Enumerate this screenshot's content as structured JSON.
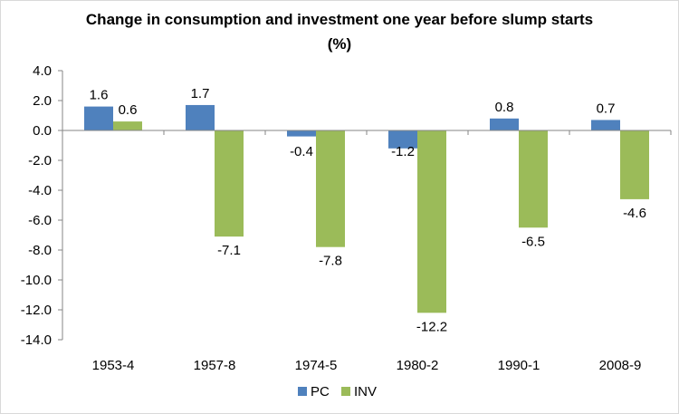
{
  "chart_data": {
    "type": "bar",
    "title": "Change in consumption and investment one year before slump starts",
    "subtitle": "(%)",
    "categories": [
      "1953-4",
      "1957-8",
      "1974-5",
      "1980-2",
      "1990-1",
      "2008-9"
    ],
    "series": [
      {
        "name": "PC",
        "color": "#4f81bd",
        "values": [
          1.6,
          1.7,
          -0.4,
          -1.2,
          0.8,
          0.7
        ],
        "labels": [
          "1.6",
          "1.7",
          "-0.4",
          "-1.2",
          "0.8",
          "0.7"
        ]
      },
      {
        "name": "INV",
        "color": "#9bbb59",
        "values": [
          0.6,
          -7.1,
          -7.8,
          -12.2,
          -6.5,
          -4.6
        ],
        "labels": [
          "0.6",
          "-7.1",
          "-7.8",
          "-12.2",
          "-6.5",
          "-4.6"
        ]
      }
    ],
    "ylim": [
      -14,
      4
    ],
    "yticks": [
      4,
      2,
      0,
      -2,
      -4,
      -6,
      -8,
      -10,
      -12,
      -14
    ],
    "ytick_labels": [
      "4.0",
      "2.0",
      "0.0",
      "-2.0",
      "-4.0",
      "-6.0",
      "-8.0",
      "-10.0",
      "-12.0",
      "-14.0"
    ],
    "xlabel": "",
    "ylabel": "",
    "grid": false,
    "legend_position": "bottom"
  }
}
